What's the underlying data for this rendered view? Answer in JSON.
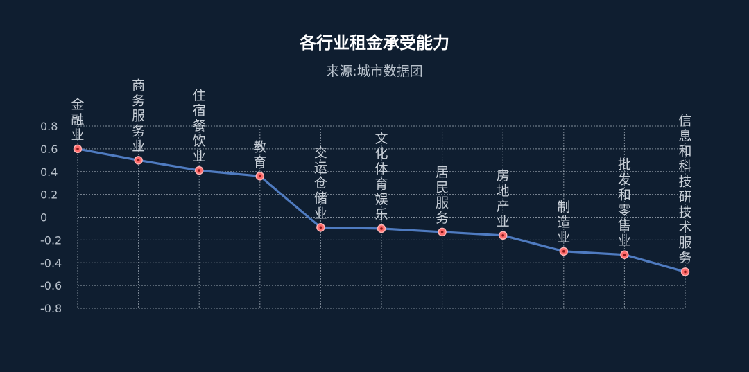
{
  "chart_data": {
    "type": "line",
    "title": "各行业租金承受能力",
    "subtitle": "来源:城市数据团",
    "categories": [
      "金融业",
      "商务服务业",
      "住宿餐饮业",
      "教育",
      "交运仓储业",
      "文化体育娱乐",
      "居民服务",
      "房地产业",
      "制造业",
      "批发和零售业",
      "信息和科技研技术服务"
    ],
    "series": [
      {
        "values": [
          0.6,
          0.5,
          0.41,
          0.36,
          -0.09,
          -0.1,
          -0.13,
          -0.16,
          -0.3,
          -0.33,
          -0.48
        ]
      }
    ],
    "ylim": [
      -0.8,
      0.8
    ],
    "yticks": [
      0.8,
      0.6,
      0.4,
      0.2,
      0,
      -0.2,
      -0.4,
      -0.6,
      -0.8
    ],
    "ytick_labels": [
      "0.8",
      "0.6",
      "0.4",
      "0.2",
      "0",
      "-0.2",
      "-0.4",
      "-0.6",
      "-0.8"
    ],
    "grid": true,
    "colors": {
      "background": "#0f1e30",
      "line": "#4f7bc0",
      "marker": "#ff6b6b",
      "grid": "#a9b3be"
    }
  }
}
